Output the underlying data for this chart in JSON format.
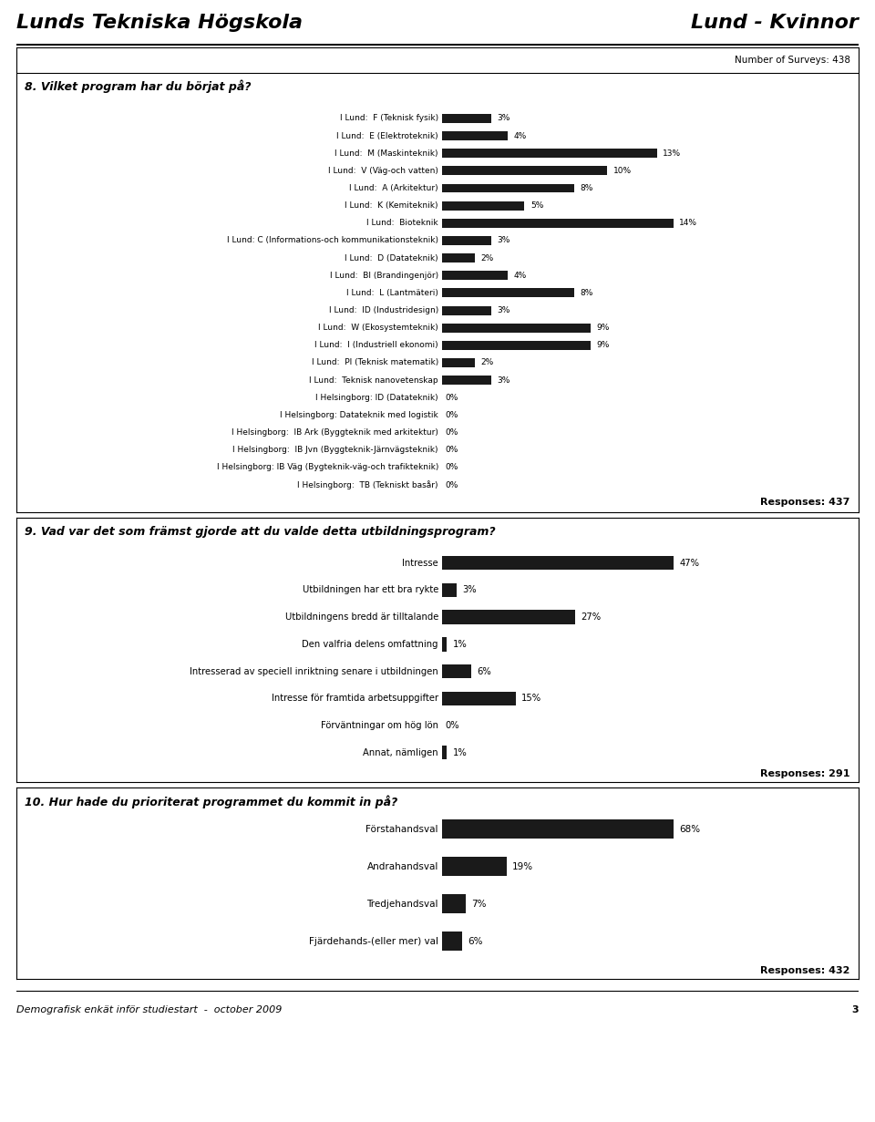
{
  "title_left": "Lunds Tekniska Högskola",
  "title_right": "Lund - Kvinnor",
  "background_color": "#ffffff",
  "bar_color": "#1a1a1a",
  "q8_title": "8. Vilket program har du börjat på?",
  "q8_surveys": "Number of Surveys: 438",
  "q8_responses": "Responses: 437",
  "q8_labels": [
    "I Lund:  F (Teknisk fysik)",
    "I Lund:  E (Elektroteknik)",
    "I Lund:  M (Maskinteknik)",
    "I Lund:  V (Väg-och vatten)",
    "I Lund:  A (Arkitektur)",
    "I Lund:  K (Kemiteknik)",
    "I Lund:  Bioteknik",
    "I Lund: C (Informations-och kommunikationsteknik)",
    "I Lund:  D (Datateknik)",
    "I Lund:  BI (Brandingenjör)",
    "I Lund:  L (Lantmäteri)",
    "I Lund:  ID (Industridesign)",
    "I Lund:  W (Ekosystemteknik)",
    "I Lund:  I (Industriell ekonomi)",
    "I Lund:  PI (Teknisk matematik)",
    "I Lund:  Teknisk nanovetenskap",
    "I Helsingborg: ID (Datateknik)",
    "I Helsingborg: Datateknik med logistik",
    "I Helsingborg:  IB Ark (Byggteknik med arkitektur)",
    "I Helsingborg:  IB Jvn (Byggteknik-Järnvägsteknik)",
    "I Helsingborg: IB Väg (Bygteknik-väg-och trafikteknik)",
    "I Helsingborg:  TB (Tekniskt basår)"
  ],
  "q8_values": [
    3,
    4,
    13,
    10,
    8,
    5,
    14,
    3,
    2,
    4,
    8,
    3,
    9,
    9,
    2,
    3,
    0,
    0,
    0,
    0,
    0,
    0
  ],
  "q8_pct_labels": [
    "3%",
    "4%",
    "13%",
    "10%",
    "8%",
    "5%",
    "14%",
    "3%",
    "2%",
    "4%",
    "8%",
    "3%",
    "9%",
    "9%",
    "2%",
    "3%",
    "0%",
    "0%",
    "0%",
    "0%",
    "0%",
    "0%"
  ],
  "q9_title": "9. Vad var det som främst gjorde att du valde detta utbildningsprogram?",
  "q9_responses": "Responses: 291",
  "q9_labels": [
    "Intresse",
    "Utbildningen har ett bra rykte",
    "Utbildningens bredd är tilltalande",
    "Den valfria delens omfattning",
    "Intresserad av speciell inriktning senare i utbildningen",
    "Intresse för framtida arbetsuppgifter",
    "Förväntningar om hög lön",
    "Annat, nämligen"
  ],
  "q9_values": [
    47,
    3,
    27,
    1,
    6,
    15,
    0,
    1
  ],
  "q9_pct_labels": [
    "47%",
    "3%",
    "27%",
    "1%",
    "6%",
    "15%",
    "0%",
    "1%"
  ],
  "q10_title": "10. Hur hade du prioriterat programmet du kommit in på?",
  "q10_responses": "Responses: 432",
  "q10_labels": [
    "Förstahandsval",
    "Andrahandsval",
    "Tredjehandsval",
    "Fjärdehands-(eller mer) val"
  ],
  "q10_values": [
    68,
    19,
    7,
    6
  ],
  "q10_pct_labels": [
    "68%",
    "19%",
    "7%",
    "6%"
  ],
  "footer": "Demografisk enkät inför studiestart  -  october 2009",
  "footer_page": "3"
}
